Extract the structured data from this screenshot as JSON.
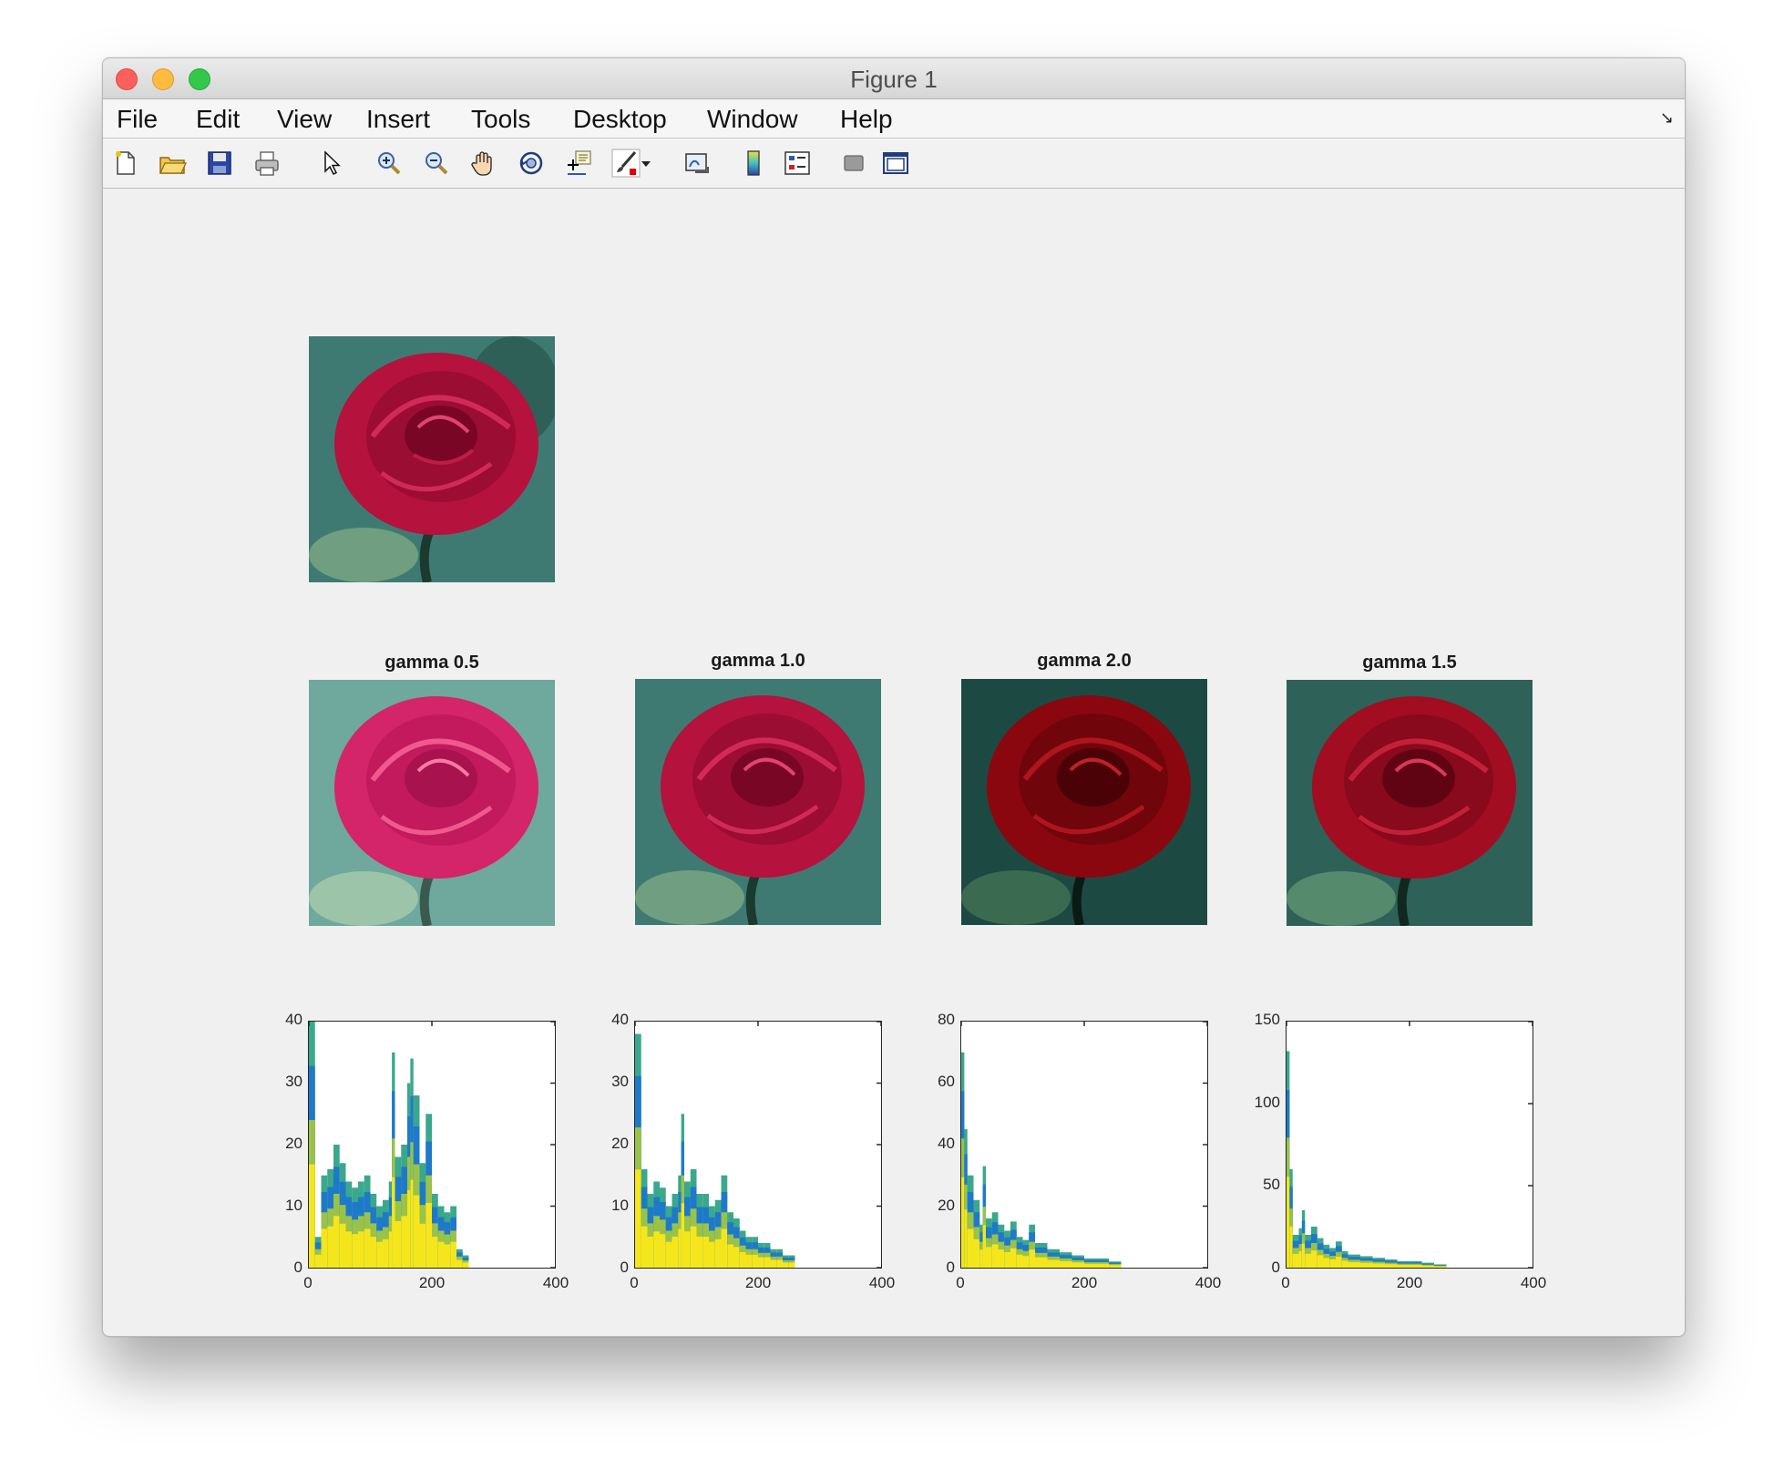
{
  "window": {
    "title": "Figure 1"
  },
  "menu": {
    "items": [
      "File",
      "Edit",
      "View",
      "Insert",
      "Tools",
      "Desktop",
      "Window",
      "Help"
    ]
  },
  "toolbar": {
    "icons": [
      "new-figure-icon",
      "open-file-icon",
      "save-icon",
      "print-icon",
      "pointer-icon",
      "zoom-in-icon",
      "zoom-out-icon",
      "pan-icon",
      "rotate-3d-icon",
      "data-cursor-icon",
      "brush-icon",
      "brush-dropdown-icon",
      "link-plot-icon",
      "colorbar-icon",
      "legend-icon",
      "hide-plot-tools-icon",
      "show-plot-tools-icon"
    ]
  },
  "images": {
    "original": {
      "title": ""
    },
    "panels": [
      {
        "title": "gamma 0.5",
        "tint": "#d4246a",
        "bg": "#5f9a8e"
      },
      {
        "title": "gamma 1.0",
        "tint": "#b5123d",
        "bg": "#3f7a72"
      },
      {
        "title": "gamma 2.0",
        "tint": "#8a0710",
        "bg": "#1c4a42"
      },
      {
        "title": "gamma 1.5",
        "tint": "#a20d22",
        "bg": "#2e6158"
      }
    ]
  },
  "chart_data": [
    {
      "type": "bar",
      "title": "",
      "xlim": [
        0,
        400
      ],
      "ylim": [
        0,
        40
      ],
      "xticks": [
        "0",
        "200",
        "400"
      ],
      "yticks": [
        "0",
        "10",
        "20",
        "30",
        "40"
      ],
      "x": [
        0,
        10,
        20,
        30,
        40,
        50,
        60,
        70,
        80,
        90,
        100,
        110,
        120,
        130,
        135,
        140,
        150,
        160,
        165,
        170,
        180,
        190,
        200,
        210,
        220,
        230,
        240,
        250,
        260
      ],
      "series": [
        {
          "values": [
            40,
            5,
            15,
            16,
            20,
            17,
            14,
            13,
            14,
            15,
            12,
            10,
            11,
            14,
            35,
            18,
            20,
            30,
            34,
            28,
            17,
            25,
            12,
            10,
            9,
            10,
            3,
            2,
            0
          ]
        }
      ]
    },
    {
      "type": "bar",
      "title": "",
      "xlim": [
        0,
        400
      ],
      "ylim": [
        0,
        40
      ],
      "xticks": [
        "0",
        "200",
        "400"
      ],
      "yticks": [
        "0",
        "10",
        "20",
        "30",
        "40"
      ],
      "x": [
        0,
        10,
        20,
        30,
        40,
        50,
        60,
        70,
        75,
        80,
        90,
        100,
        110,
        120,
        130,
        140,
        150,
        160,
        170,
        180,
        190,
        200,
        210,
        220,
        230,
        240,
        250,
        260
      ],
      "series": [
        {
          "values": [
            38,
            16,
            12,
            14,
            13,
            10,
            12,
            15,
            25,
            14,
            16,
            12,
            12,
            10,
            11,
            15,
            9,
            8,
            6,
            5,
            5,
            4,
            4,
            3,
            3,
            2,
            2,
            0
          ]
        }
      ]
    },
    {
      "type": "bar",
      "title": "",
      "xlim": [
        0,
        400
      ],
      "ylim": [
        0,
        80
      ],
      "xticks": [
        "0",
        "200",
        "400"
      ],
      "yticks": [
        "0",
        "20",
        "40",
        "60",
        "80"
      ],
      "x": [
        0,
        5,
        10,
        20,
        30,
        35,
        40,
        50,
        60,
        70,
        80,
        90,
        100,
        110,
        120,
        140,
        160,
        180,
        200,
        220,
        240,
        260
      ],
      "series": [
        {
          "values": [
            70,
            45,
            30,
            22,
            14,
            33,
            16,
            18,
            14,
            12,
            15,
            10,
            9,
            14,
            8,
            6,
            5,
            4,
            3,
            3,
            2,
            0
          ]
        }
      ]
    },
    {
      "type": "bar",
      "title": "",
      "xlim": [
        0,
        400
      ],
      "ylim": [
        0,
        150
      ],
      "xticks": [
        "0",
        "200",
        "400"
      ],
      "yticks": [
        "0",
        "50",
        "100",
        "150"
      ],
      "x": [
        0,
        5,
        10,
        20,
        25,
        30,
        40,
        50,
        60,
        70,
        80,
        90,
        100,
        120,
        140,
        160,
        180,
        200,
        220,
        240,
        260
      ],
      "series": [
        {
          "values": [
            132,
            60,
            20,
            24,
            35,
            20,
            25,
            18,
            14,
            12,
            16,
            10,
            8,
            7,
            6,
            5,
            4,
            4,
            3,
            2,
            0
          ]
        }
      ]
    }
  ]
}
